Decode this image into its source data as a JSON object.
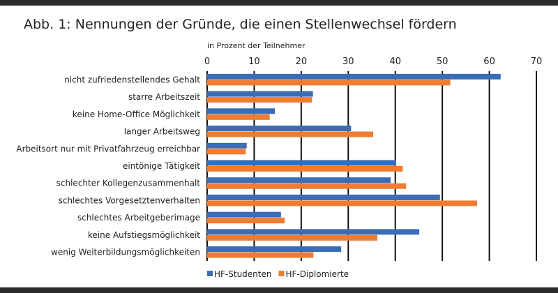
{
  "chart_data": {
    "type": "bar",
    "orientation": "horizontal",
    "title": "Abb. 1: Nennungen der Gründe, die einen Stellenwechsel fördern",
    "xlabel": "in Prozent der Teilnehmer",
    "ylabel": "",
    "xlim": [
      0,
      70
    ],
    "xticks": [
      0,
      10,
      20,
      30,
      40,
      50,
      60,
      70
    ],
    "grid": true,
    "legend": "bottom-left",
    "categories": [
      "nicht zufriedenstellendes Gehalt",
      "starre Arbeitszeit",
      "keine Home-Office Möglichkeit",
      "langer Arbeitsweg",
      "Arbeitsort nur mit Privatfahrzeug erreichbar",
      "eintönige Tätigkeit",
      "schlechter Kollegenzusammenhalt",
      "schlechtes Vorgesetztenverhalten",
      "schlechtes Arbeitgeberimage",
      "keine Aufstiegsmöglichkeit",
      "wenig Weiterbildungsmöglichkeiten"
    ],
    "series": [
      {
        "name": "HF-Studenten",
        "color": "#3a6db5",
        "values": [
          62.4,
          22.5,
          14.4,
          30.6,
          8.4,
          40.1,
          39.0,
          49.5,
          15.7,
          45.1,
          28.5
        ]
      },
      {
        "name": "HF-Diplomierte",
        "color": "#ef7d31",
        "values": [
          51.7,
          22.3,
          13.3,
          35.3,
          8.2,
          41.6,
          42.3,
          57.4,
          16.5,
          36.2,
          22.6
        ]
      }
    ]
  }
}
